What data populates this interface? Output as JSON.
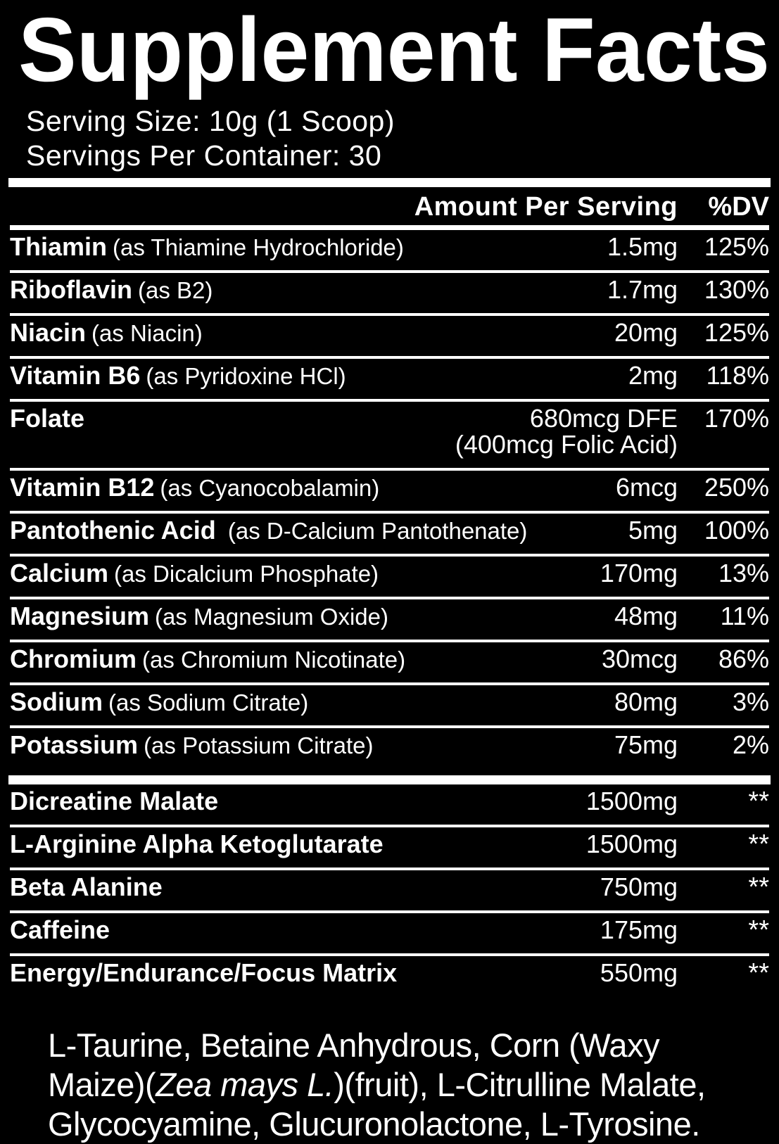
{
  "title": "Supplement Facts",
  "serving": {
    "size_line": "Serving Size: 10g (1 Scoop)",
    "servings_line": "Servings Per Container: 30"
  },
  "table": {
    "amount_header": "Amount Per Serving",
    "dv_header": "%DV",
    "nutrients": [
      {
        "name": "Thiamin",
        "form": "(as Thiamine Hydrochloride)",
        "amount": "1.5mg",
        "dv": "125%"
      },
      {
        "name": "Riboflavin",
        "form": "(as B2)",
        "amount": "1.7mg",
        "dv": "130%"
      },
      {
        "name": "Niacin",
        "form": "(as Niacin)",
        "amount": "20mg",
        "dv": "125%"
      },
      {
        "name": "Vitamin B6",
        "form": "(as Pyridoxine HCl)",
        "amount": "2mg",
        "dv": "118%"
      },
      {
        "name": "Folate",
        "form": "",
        "amount": "680mcg DFE",
        "amount_line2": "(400mcg Folic Acid)",
        "dv": "170%"
      },
      {
        "name": "Vitamin B12",
        "form": "(as Cyanocobalamin)",
        "amount": "6mcg",
        "dv": "250%"
      },
      {
        "name": "Pantothenic Acid",
        "form": " (as D-Calcium Pantothenate)",
        "amount": "5mg",
        "dv": "100%"
      },
      {
        "name": "Calcium",
        "form": "(as Dicalcium Phosphate)",
        "amount": "170mg",
        "dv": "13%"
      },
      {
        "name": "Magnesium",
        "form": "(as Magnesium Oxide)",
        "amount": "48mg",
        "dv": "11%"
      },
      {
        "name": "Chromium",
        "form": "(as Chromium Nicotinate)",
        "amount": "30mcg",
        "dv": "86%"
      },
      {
        "name": "Sodium",
        "form": "(as Sodium Citrate)",
        "amount": "80mg",
        "dv": "3%"
      },
      {
        "name": "Potassium",
        "form": "(as Potassium Citrate)",
        "amount": "75mg",
        "dv": "2%"
      }
    ],
    "blends": [
      {
        "name": "Dicreatine Malate",
        "amount": "1500mg",
        "dv": "**"
      },
      {
        "name": "L-Arginine Alpha Ketoglutarate",
        "amount": "1500mg",
        "dv": "**"
      },
      {
        "name": "Beta Alanine",
        "amount": "750mg",
        "dv": "**"
      },
      {
        "name": "Caffeine",
        "amount": "175mg",
        "dv": "**"
      },
      {
        "name": "Energy/Endurance/Focus Matrix",
        "amount": "550mg",
        "dv": "**"
      }
    ]
  },
  "matrix_ingredients": {
    "before_italic": "L-Taurine, Betaine Anhydrous, Corn (Waxy Maize)(",
    "italic": "Zea mays L.",
    "after_italic": ")(fruit),  L-Citrulline Malate, Glycocyamine, Glucuronolactone, L-Tyrosine."
  },
  "colors": {
    "background": "#000000",
    "text": "#ffffff"
  }
}
